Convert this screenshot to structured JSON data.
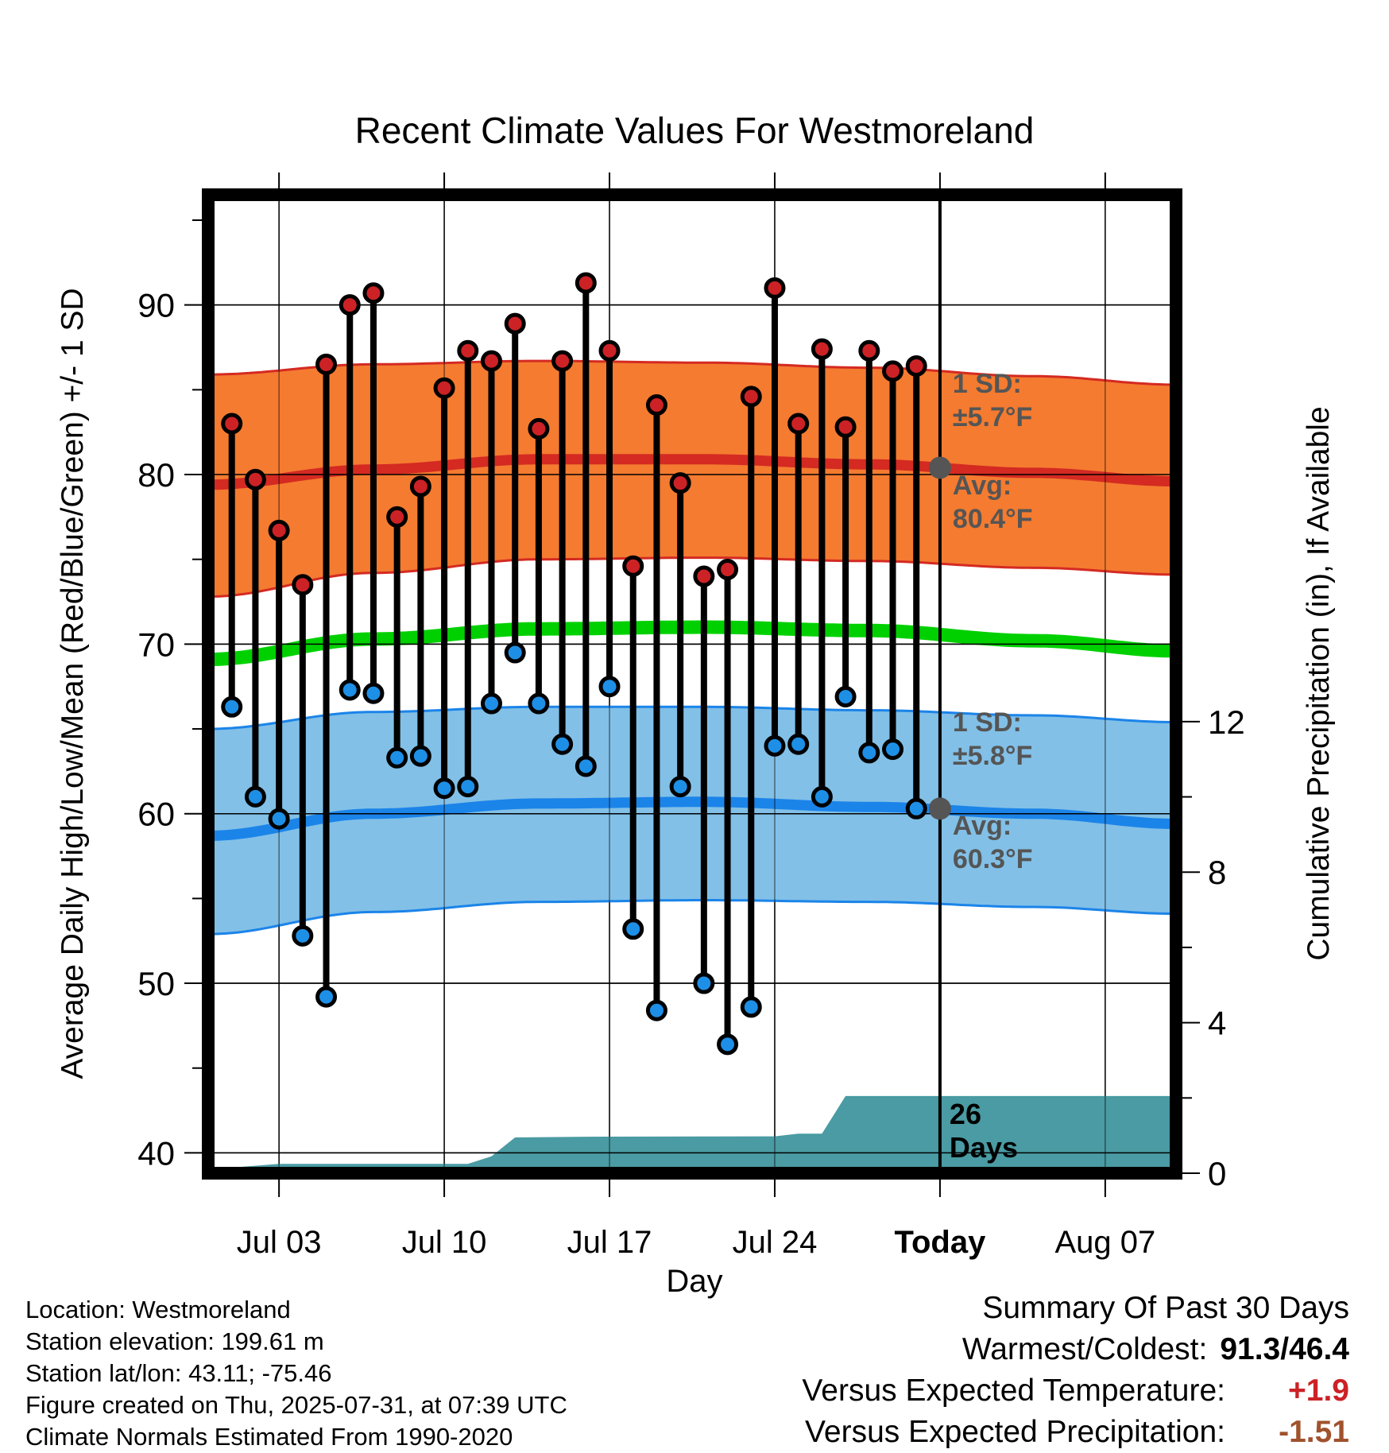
{
  "chart_data": {
    "type": "line",
    "title": "Recent Climate Values For Westmoreland",
    "xlabel": "Day",
    "ylabel_left": "Average Daily High/Low/Mean (Red/Blue/Green) +/- 1 SD",
    "ylabel_right": "Cumulative Precipitation (in), If Available",
    "x_tick_labels": [
      "Jul 03",
      "Jul 10",
      "Jul 17",
      "Jul 24",
      "Today",
      "Aug 07"
    ],
    "y_ticks_left": [
      40,
      50,
      60,
      70,
      80,
      90
    ],
    "y_ticks_right": [
      0,
      4,
      8,
      12
    ],
    "ylim_left": [
      38.8,
      96.5
    ],
    "ylim_right": [
      0,
      26
    ],
    "xlim": [
      "2025-06-30",
      "2025-08-10"
    ],
    "today": "2025-07-31",
    "high_band": {
      "x": [
        "2025-06-30",
        "2025-07-07",
        "2025-07-14",
        "2025-07-21",
        "2025-07-28",
        "2025-08-04",
        "2025-08-10"
      ],
      "mean": [
        79.4,
        80.3,
        80.9,
        80.9,
        80.6,
        80.1,
        79.6
      ],
      "upper": [
        85.9,
        86.5,
        86.7,
        86.6,
        86.3,
        85.8,
        85.3
      ],
      "lower": [
        72.8,
        74.2,
        75.0,
        75.1,
        74.9,
        74.5,
        74.1
      ],
      "sd_label": "1 SD:",
      "sd_value": "±5.7°F",
      "avg_label": "Avg:",
      "avg_value": "80.4°F"
    },
    "low_band": {
      "x": [
        "2025-06-30",
        "2025-07-07",
        "2025-07-14",
        "2025-07-21",
        "2025-07-28",
        "2025-08-04",
        "2025-08-10"
      ],
      "mean": [
        58.7,
        60.0,
        60.6,
        60.7,
        60.4,
        60.0,
        59.4
      ],
      "upper": [
        65.0,
        66.0,
        66.3,
        66.3,
        66.1,
        65.8,
        65.4
      ],
      "lower": [
        52.9,
        54.2,
        54.8,
        54.9,
        54.8,
        54.5,
        54.1
      ],
      "sd_label": "1 SD:",
      "sd_value": "±5.8°F",
      "avg_label": "Avg:",
      "avg_value": "60.3°F"
    },
    "mean_line": {
      "x": [
        "2025-06-30",
        "2025-07-07",
        "2025-07-14",
        "2025-07-21",
        "2025-07-28",
        "2025-08-04",
        "2025-08-10"
      ],
      "values": [
        69.1,
        70.3,
        70.9,
        71.0,
        70.8,
        70.2,
        69.6
      ]
    },
    "daily": {
      "dates": [
        "2025-07-01",
        "2025-07-02",
        "2025-07-03",
        "2025-07-04",
        "2025-07-05",
        "2025-07-06",
        "2025-07-07",
        "2025-07-08",
        "2025-07-09",
        "2025-07-10",
        "2025-07-11",
        "2025-07-12",
        "2025-07-13",
        "2025-07-14",
        "2025-07-15",
        "2025-07-16",
        "2025-07-17",
        "2025-07-18",
        "2025-07-19",
        "2025-07-20",
        "2025-07-21",
        "2025-07-22",
        "2025-07-23",
        "2025-07-24",
        "2025-07-25",
        "2025-07-26",
        "2025-07-27",
        "2025-07-28",
        "2025-07-29",
        "2025-07-30"
      ],
      "high": [
        83.0,
        79.7,
        76.7,
        73.5,
        86.5,
        90.0,
        90.7,
        77.5,
        79.3,
        85.1,
        87.3,
        86.7,
        88.9,
        82.7,
        86.7,
        91.3,
        87.3,
        74.6,
        84.1,
        79.5,
        74.0,
        74.4,
        84.6,
        91.0,
        83.0,
        87.4,
        82.8,
        87.3,
        86.1,
        86.4
      ],
      "low": [
        66.3,
        61.0,
        59.7,
        52.8,
        49.2,
        67.3,
        67.1,
        63.3,
        63.4,
        61.5,
        61.6,
        66.5,
        69.5,
        66.5,
        64.1,
        62.8,
        67.5,
        53.2,
        48.4,
        61.6,
        50.0,
        46.4,
        48.6,
        64.0,
        64.1,
        61.0,
        66.9,
        63.6,
        63.8,
        60.3
      ]
    },
    "precip": {
      "x": [
        "2025-06-30",
        "2025-07-01",
        "2025-07-03",
        "2025-07-11",
        "2025-07-12",
        "2025-07-13",
        "2025-07-16",
        "2025-07-24",
        "2025-07-25",
        "2025-07-26",
        "2025-07-27",
        "2025-07-31",
        "2025-08-10"
      ],
      "values": [
        0.0,
        0.15,
        0.25,
        0.25,
        0.45,
        0.95,
        0.97,
        0.98,
        1.05,
        1.05,
        2.05,
        2.05,
        2.05
      ],
      "days_count": "26",
      "days_label": "Days"
    },
    "grid": true,
    "colors": {
      "high_band": "#f47b30",
      "high_edge": "#d42a22",
      "low_band": "#82c0e7",
      "low_edge": "#1b84e9",
      "mean_line": "#00d000",
      "precip": "#4a9ba3",
      "high_marker": "#cc2226",
      "low_marker": "#1e8fe6",
      "annotation": "#555555"
    }
  },
  "footer": {
    "location": "Location: Westmoreland",
    "elevation": "Station elevation: 199.61 m",
    "latlon": "Station lat/lon: 43.11; -75.46",
    "created": "Figure created on Thu, 2025-07-31, at 07:39 UTC",
    "normals": "Climate Normals Estimated From 1990-2020"
  },
  "summary": {
    "title": "Summary Of Past 30 Days",
    "warm_cold_label": "Warmest/Coldest:",
    "warm_cold_value": "91.3/46.4",
    "temp_label": "Versus Expected Temperature:",
    "temp_value": "+1.9",
    "temp_color": "#cc2226",
    "precip_label": "Versus Expected Precipitation:",
    "precip_value": "-1.51",
    "precip_color": "#a0522d"
  }
}
